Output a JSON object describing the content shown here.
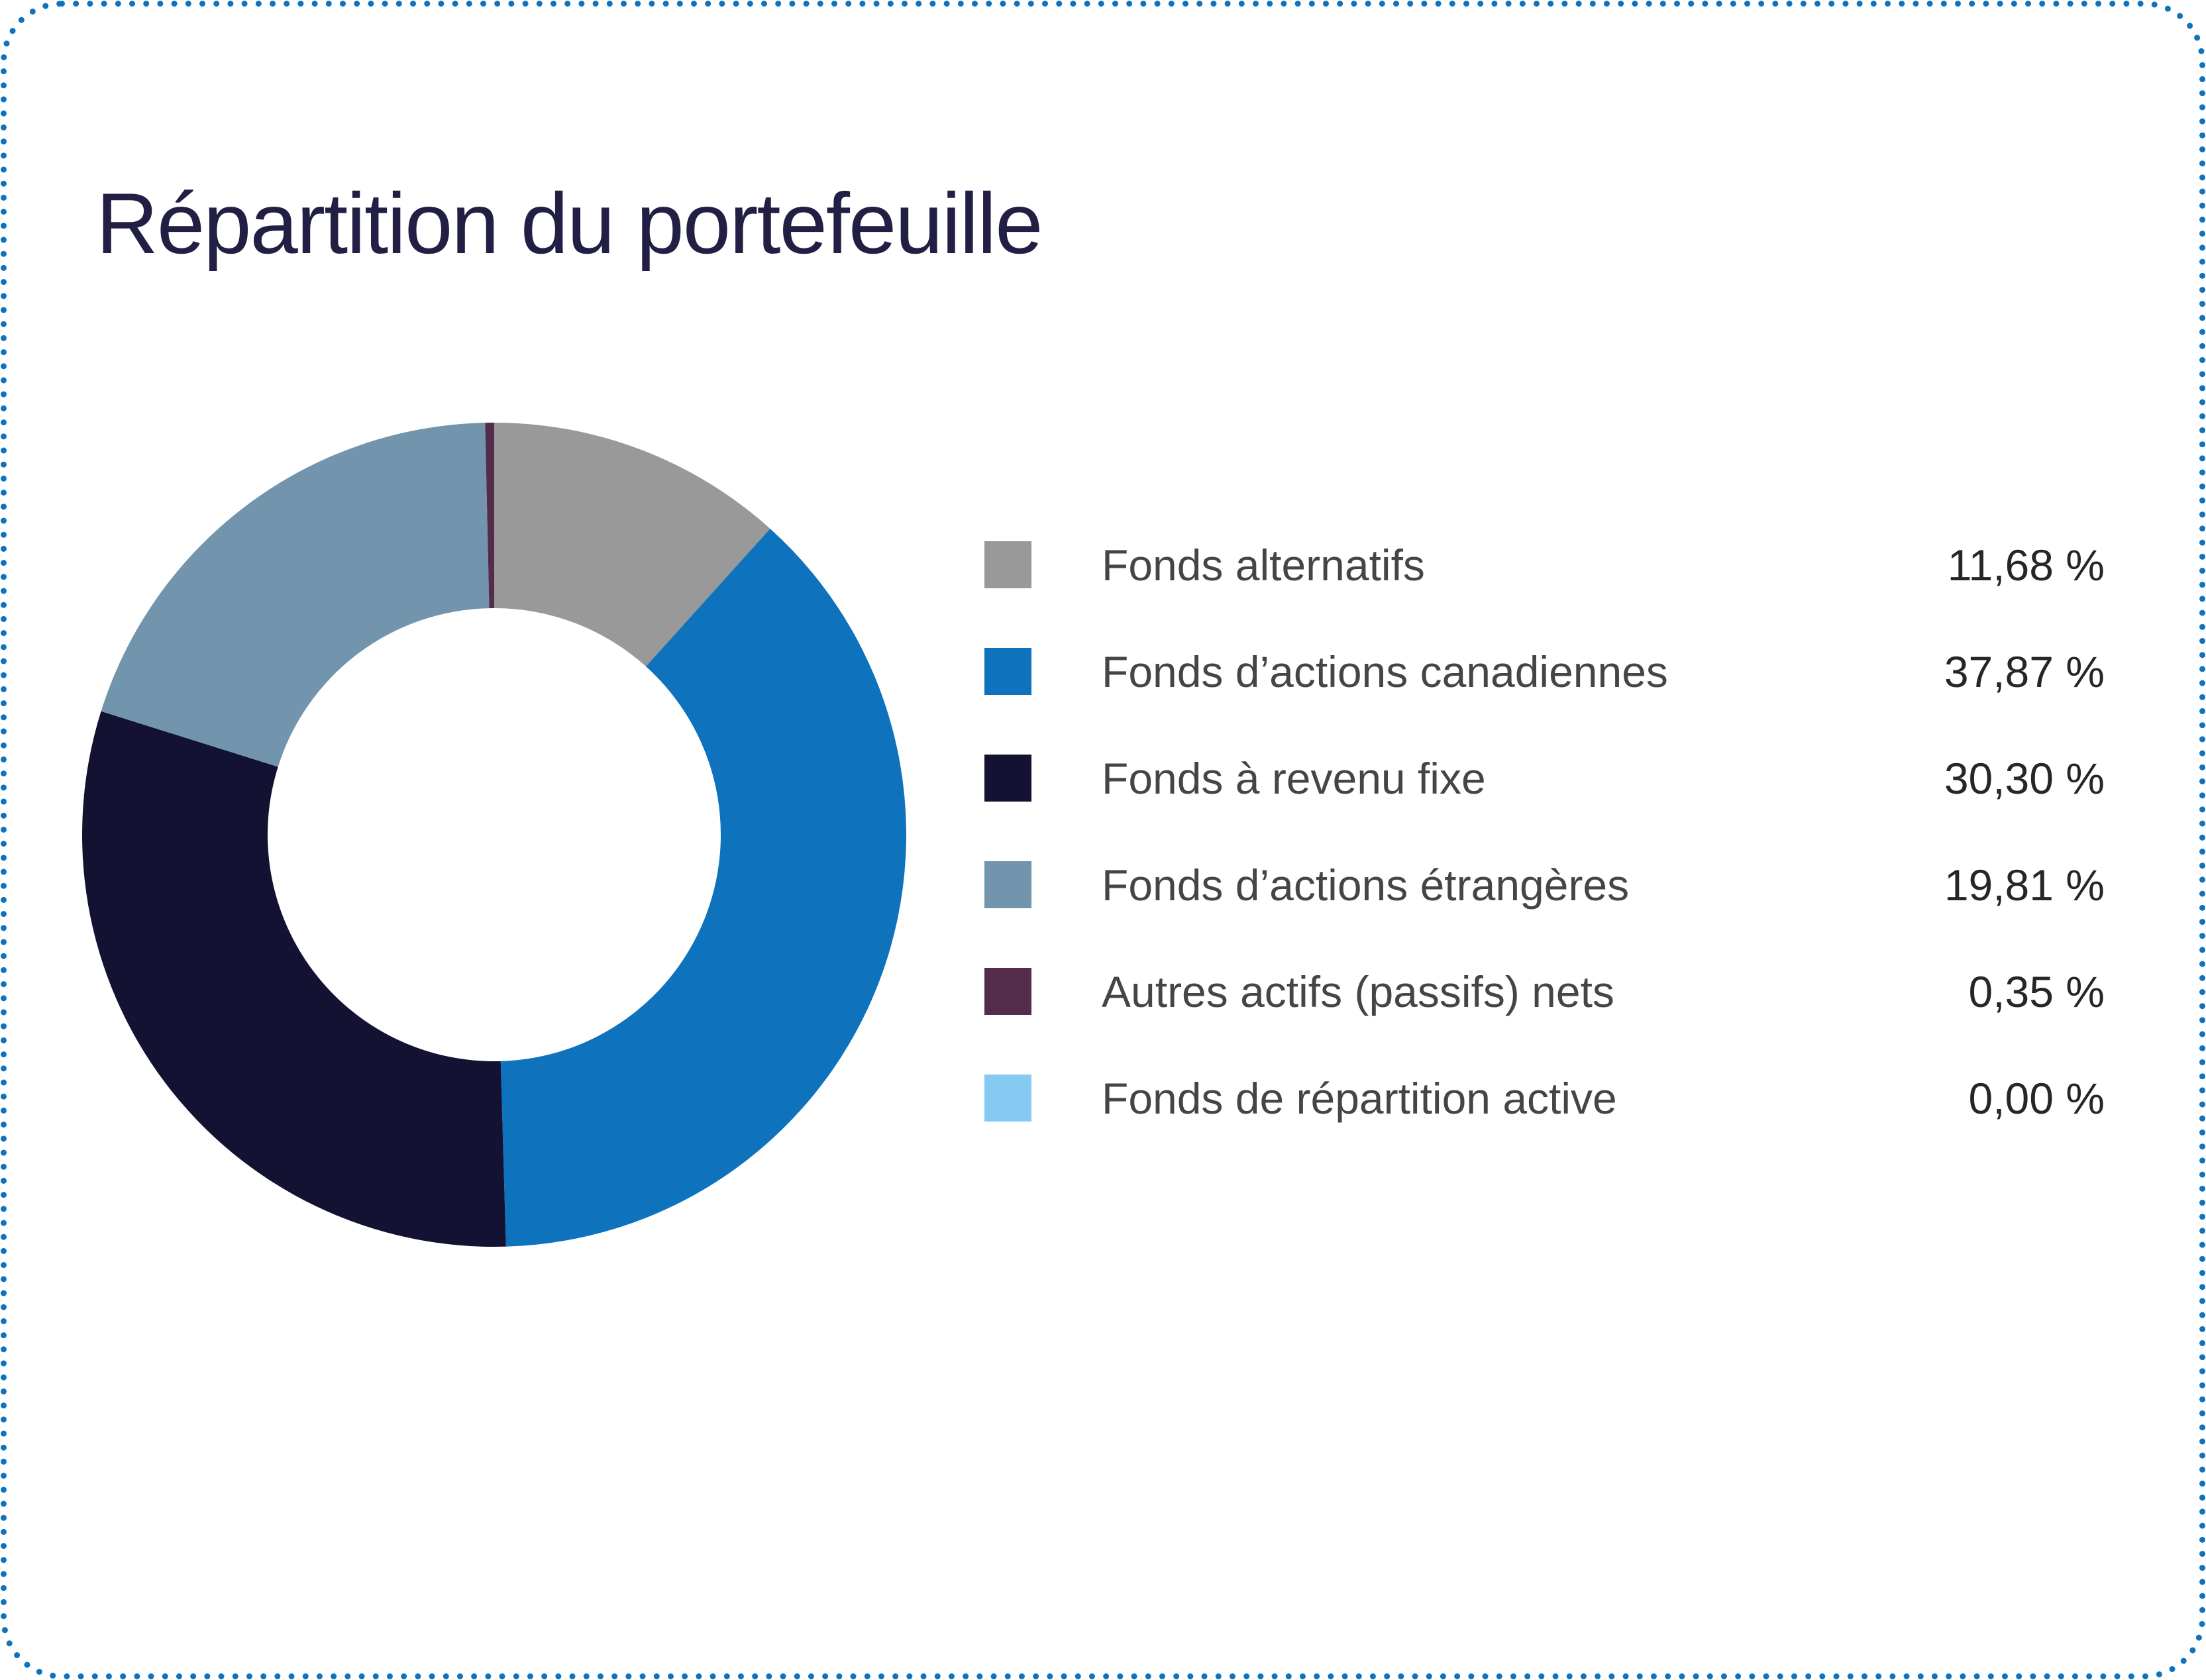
{
  "card": {
    "background": "#ffffff",
    "border_dot_color": "#0f72bc",
    "title_color": "#221f44",
    "label_color": "#454545",
    "value_color": "#262626"
  },
  "chart_data": {
    "type": "donut",
    "title": "Répartition du portefeuille",
    "legend_position": "right",
    "start_angle_deg": 0,
    "direction": "clockwise",
    "inner_radius_ratio": 0.55,
    "unit": "%",
    "series": [
      {
        "label": "Fonds alternatifs",
        "value": 11.68,
        "display": "11,68 %",
        "color": "#999999"
      },
      {
        "label": "Fonds d’actions canadiennes",
        "value": 37.87,
        "display": "37,87 %",
        "color": "#0e72bc"
      },
      {
        "label": "Fonds à revenu fixe",
        "value": 30.3,
        "display": "30,30 %",
        "color": "#131233"
      },
      {
        "label": "Fonds d’actions étrangères",
        "value": 19.81,
        "display": "19,81 %",
        "color": "#7295ad"
      },
      {
        "label": "Autres actifs (passifs) nets",
        "value": 0.35,
        "display": "0,35 %",
        "color": "#532c4b"
      },
      {
        "label": "Fonds de répartition active",
        "value": 0.0,
        "display": "0,00 %",
        "color": "#85cbf1"
      }
    ]
  }
}
